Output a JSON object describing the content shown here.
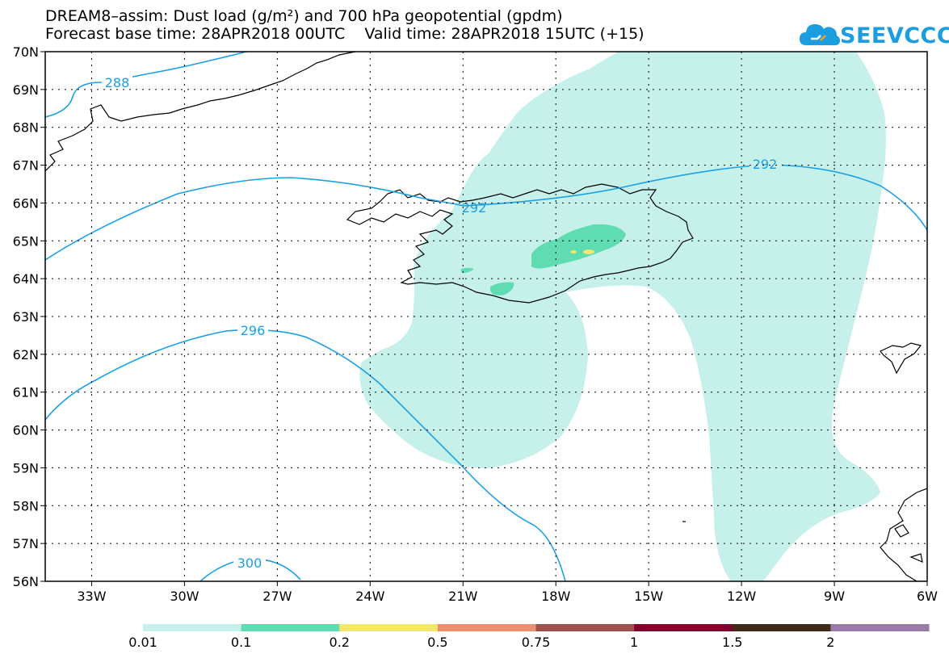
{
  "title": {
    "line1": "DREAM8–assim: Dust load (g/m²) and 700 hPa geopotential (gpdm)",
    "line2": "Forecast base time: 28APR2018 00UTC    Valid time: 28APR2018 15UTC (+15)"
  },
  "logo": {
    "text": "SEEVCCC",
    "color": "#1a9ee0"
  },
  "map": {
    "lon_range": [
      -34.5,
      -6
    ],
    "lat_range": [
      56,
      70
    ],
    "gridlines": "dotted",
    "x_ticks": [
      "33W",
      "30W",
      "27W",
      "24W",
      "21W",
      "18W",
      "15W",
      "12W",
      "9W",
      "6W"
    ],
    "y_ticks": [
      "70N",
      "69N",
      "68N",
      "67N",
      "66N",
      "65N",
      "64N",
      "63N",
      "62N",
      "61N",
      "60N",
      "59N",
      "58N",
      "57N",
      "56N"
    ],
    "contour_color": "#1aa0e8",
    "contour_labels": [
      "288",
      "292",
      "292",
      "296",
      "300"
    ],
    "dust_colors": {
      "light": "#c6f0ea",
      "medium": "#5fdcb1",
      "high": "#f5e66e"
    }
  },
  "legend": {
    "labels": [
      "0.01",
      "0.1",
      "0.2",
      "0.5",
      "0.75",
      "1",
      "1.5",
      "2"
    ],
    "colors": [
      "#c6f0ea",
      "#5fdcb1",
      "#f5e66e",
      "#e89070",
      "#a0504a",
      "#800030",
      "#3f2a18",
      "#9a7aa8"
    ]
  }
}
